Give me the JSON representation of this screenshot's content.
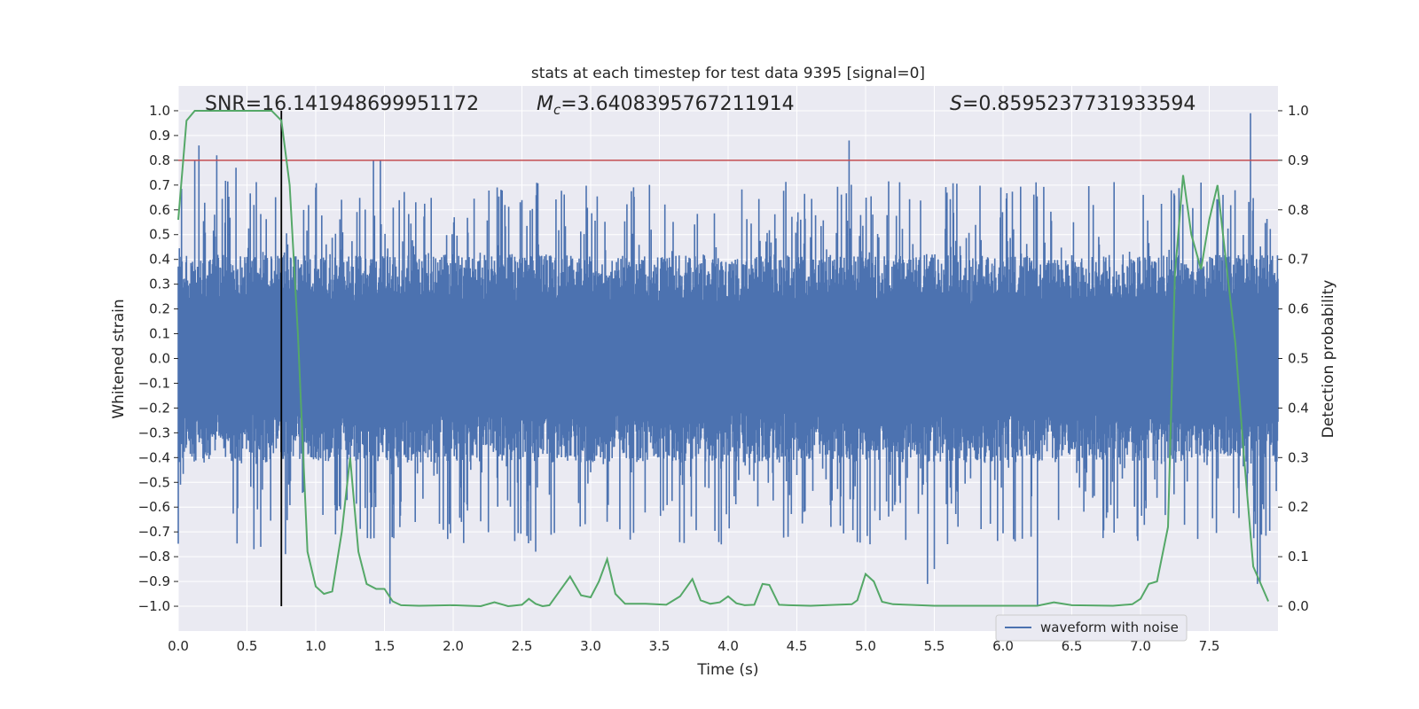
{
  "chart_data": {
    "type": "line",
    "title": "stats at each timestep for test data 9395 [signal=0]",
    "xlabel": "Time (s)",
    "ylabel": "Whitened strain",
    "y2label": "Detection probability",
    "xlim": [
      0.0,
      8.0
    ],
    "ylim": [
      -1.1,
      1.1
    ],
    "y2lim": [
      -0.05,
      1.05
    ],
    "x_ticks": [
      "0.0",
      "0.5",
      "1.0",
      "1.5",
      "2.0",
      "2.5",
      "3.0",
      "3.5",
      "4.0",
      "4.5",
      "5.0",
      "5.5",
      "6.0",
      "6.5",
      "7.0",
      "7.5"
    ],
    "y_ticks": [
      "1.0",
      "0.9",
      "0.8",
      "0.7",
      "0.6",
      "0.5",
      "0.4",
      "0.3",
      "0.2",
      "0.1",
      "0.0",
      "-0.1",
      "-0.2",
      "-0.3",
      "-0.4",
      "-0.5",
      "-0.6",
      "-0.7",
      "-0.8",
      "-0.9",
      "-1.0"
    ],
    "y2_ticks": [
      "1.0",
      "0.9",
      "0.8",
      "0.7",
      "0.6",
      "0.5",
      "0.4",
      "0.3",
      "0.2",
      "0.1",
      "0.0"
    ],
    "annotations": {
      "snr": "SNR=16.141948699951172",
      "mc_symbol": "M",
      "mc_sub": "c",
      "mc_value": "=3.6408395767211914",
      "s_symbol": "S",
      "s_value": "=0.8595237731933594"
    },
    "threshold_line": {
      "axis": "y2",
      "value": 0.9,
      "color": "#c44e52"
    },
    "marker_line": {
      "x": 0.75,
      "y_from": -1.0,
      "y_to": 1.0,
      "color": "#000000"
    },
    "legend": {
      "label": "waveform with noise",
      "placement": "lower-right"
    },
    "series": [
      {
        "name": "waveform with noise",
        "axis": "y",
        "color": "#4c72b0",
        "envelope": "dense noise band approx -0.4 to 0.4 with spikes up to ~0.99 and down to ~-1.0",
        "spikes": [
          {
            "x": 0.15,
            "y": 0.86
          },
          {
            "x": 0.28,
            "y": 0.82
          },
          {
            "x": 0.42,
            "y": 0.77
          },
          {
            "x": 0.12,
            "y": 0.8
          },
          {
            "x": 0.55,
            "y": 0.62
          },
          {
            "x": 1.0,
            "y": 0.69
          },
          {
            "x": 1.42,
            "y": 0.8
          },
          {
            "x": 1.47,
            "y": 0.8
          },
          {
            "x": 4.88,
            "y": 0.88
          },
          {
            "x": 7.8,
            "y": 0.99
          },
          {
            "x": 0.55,
            "y": -0.77
          },
          {
            "x": 0.6,
            "y": -0.76
          },
          {
            "x": 0.78,
            "y": -0.79
          },
          {
            "x": 1.54,
            "y": -0.99
          },
          {
            "x": 2.6,
            "y": -0.78
          },
          {
            "x": 3.95,
            "y": -0.75
          },
          {
            "x": 5.45,
            "y": -0.91
          },
          {
            "x": 5.5,
            "y": -0.85
          },
          {
            "x": 6.25,
            "y": -1.0
          },
          {
            "x": 7.85,
            "y": -0.91
          },
          {
            "x": 7.87,
            "y": -0.9
          }
        ]
      },
      {
        "name": "detection probability",
        "axis": "y2",
        "color": "#55a868",
        "x": [
          0.0,
          0.06,
          0.12,
          0.2,
          0.3,
          0.4,
          0.5,
          0.6,
          0.68,
          0.75,
          0.81,
          0.87,
          0.94,
          1.0,
          1.06,
          1.12,
          1.19,
          1.25,
          1.31,
          1.37,
          1.44,
          1.5,
          1.56,
          1.62,
          1.75,
          2.0,
          2.2,
          2.3,
          2.4,
          2.5,
          2.55,
          2.6,
          2.65,
          2.7,
          2.85,
          2.93,
          3.0,
          3.06,
          3.12,
          3.18,
          3.25,
          3.4,
          3.55,
          3.65,
          3.74,
          3.8,
          3.87,
          3.94,
          4.0,
          4.06,
          4.12,
          4.19,
          4.25,
          4.3,
          4.37,
          4.44,
          4.6,
          4.9,
          4.94,
          5.0,
          5.06,
          5.12,
          5.2,
          5.5,
          6.0,
          6.25,
          6.37,
          6.5,
          6.8,
          6.94,
          7.0,
          7.06,
          7.12,
          7.2,
          7.25,
          7.31,
          7.37,
          7.44,
          7.5,
          7.56,
          7.62,
          7.69,
          7.75,
          7.82,
          7.93
        ],
        "y": [
          0.78,
          0.98,
          1.0,
          1.0,
          1.0,
          1.0,
          1.0,
          1.0,
          1.0,
          0.98,
          0.85,
          0.55,
          0.11,
          0.04,
          0.025,
          0.03,
          0.15,
          0.3,
          0.11,
          0.045,
          0.035,
          0.035,
          0.01,
          0.002,
          0.001,
          0.002,
          0.0,
          0.008,
          0.0,
          0.003,
          0.015,
          0.005,
          0.0,
          0.002,
          0.06,
          0.022,
          0.018,
          0.05,
          0.095,
          0.025,
          0.005,
          0.005,
          0.003,
          0.02,
          0.055,
          0.012,
          0.005,
          0.008,
          0.02,
          0.006,
          0.002,
          0.003,
          0.045,
          0.043,
          0.003,
          0.002,
          0.001,
          0.004,
          0.012,
          0.065,
          0.05,
          0.009,
          0.004,
          0.001,
          0.001,
          0.001,
          0.008,
          0.002,
          0.001,
          0.004,
          0.015,
          0.045,
          0.05,
          0.16,
          0.67,
          0.87,
          0.75,
          0.68,
          0.78,
          0.85,
          0.7,
          0.53,
          0.31,
          0.08,
          0.01
        ]
      }
    ]
  }
}
